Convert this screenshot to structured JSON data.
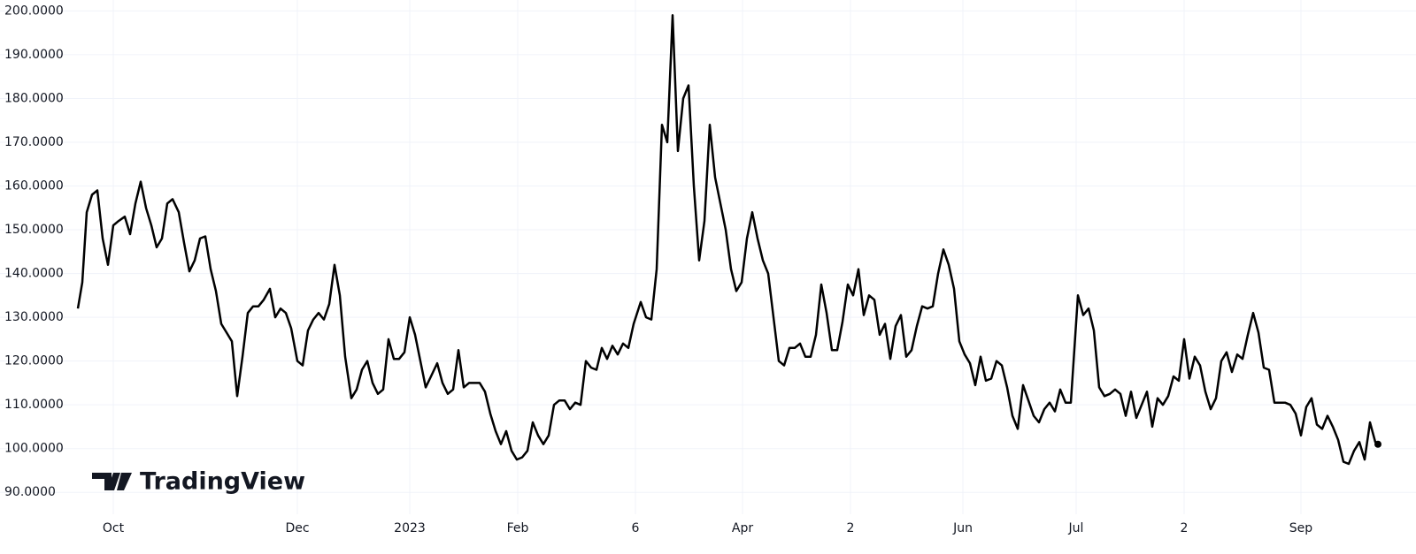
{
  "chart_data": {
    "type": "line",
    "watermark": "TradingView",
    "x": [
      0,
      5,
      10,
      16,
      22,
      28,
      34,
      40,
      46,
      53,
      59,
      65,
      71,
      77,
      83,
      89,
      95,
      101,
      107,
      114,
      120,
      126,
      132,
      138,
      144,
      150,
      156,
      162,
      168,
      174,
      180,
      186,
      192,
      198,
      204,
      210,
      217,
      223,
      229,
      235,
      241,
      248,
      254,
      260,
      266,
      272,
      278,
      284,
      290,
      296,
      302,
      309,
      315,
      321,
      327,
      333,
      339,
      345,
      351,
      357,
      363,
      369,
      375,
      381,
      387,
      393,
      399,
      406,
      412,
      418,
      424,
      430,
      436,
      442,
      448,
      454,
      460,
      466,
      472,
      478,
      484,
      490,
      496,
      502,
      508,
      514,
      520,
      526,
      532,
      538,
      544,
      550,
      556,
      562,
      568,
      574,
      580,
      586,
      592,
      598,
      604,
      610,
      616,
      622,
      628,
      636,
      642,
      648,
      654,
      660,
      666,
      672,
      678,
      684,
      690,
      696,
      702,
      708,
      714,
      720,
      726,
      732,
      738,
      744,
      750,
      756,
      762,
      768,
      774,
      780,
      786,
      792,
      798,
      804,
      810,
      816,
      822,
      828,
      834,
      840,
      846,
      852,
      858,
      864,
      870,
      876,
      882,
      888,
      894,
      900,
      906,
      912,
      918,
      924,
      930,
      936,
      942,
      948,
      954,
      960,
      966,
      972,
      978,
      984,
      990,
      996,
      1002,
      1008,
      1014,
      1020,
      1026,
      1032,
      1038,
      1044,
      1050,
      1056,
      1062,
      1068,
      1074,
      1080,
      1086,
      1092,
      1098,
      1104,
      1110,
      1116,
      1122,
      1130,
      1136,
      1142,
      1148,
      1154,
      1160,
      1166,
      1172,
      1178,
      1184,
      1190,
      1196,
      1202,
      1208,
      1214,
      1220,
      1226,
      1232,
      1238,
      1244,
      1250,
      1256,
      1262,
      1268,
      1274,
      1280,
      1286,
      1292,
      1298,
      1304,
      1310,
      1316,
      1322,
      1328,
      1334,
      1340,
      1346,
      1352,
      1358,
      1364,
      1370,
      1376,
      1382,
      1388,
      1394,
      1400,
      1406,
      1412,
      1418,
      1424,
      1430,
      1436,
      1442,
      1448,
      1454,
      1460,
      1466,
      1469
    ],
    "series": [
      {
        "color": "#000000",
        "values": [
          132,
          138,
          154,
          158,
          159,
          148,
          142,
          151,
          152,
          153,
          149,
          156,
          161,
          155,
          151,
          146,
          148,
          156,
          157,
          154,
          147,
          140.5,
          143,
          148,
          148.5,
          141,
          136,
          128.5,
          126.5,
          124.5,
          112,
          121,
          131,
          132.5,
          132.5,
          134,
          136.5,
          130,
          132,
          131,
          127.5,
          120,
          119,
          127,
          129.5,
          131,
          129.5,
          133,
          142,
          135,
          121,
          111.5,
          113.5,
          118,
          120,
          115,
          112.5,
          113.5,
          125,
          120.5,
          120.5,
          122,
          130,
          126,
          120,
          114,
          116.5,
          119.5,
          115,
          112.5,
          113.5,
          122.5,
          114,
          115,
          115,
          115,
          113,
          108,
          104,
          101,
          104,
          99.5,
          97.5,
          98,
          99.5,
          106,
          103,
          101,
          103,
          110,
          111,
          111,
          109,
          110.5,
          110,
          120,
          118.5,
          118,
          123,
          120.5,
          123.5,
          121.5,
          124,
          123,
          128.5,
          133.5,
          130,
          129.5,
          141,
          174,
          170,
          199,
          168,
          180,
          183,
          160,
          143,
          152,
          174,
          162,
          156,
          150,
          141,
          136,
          138,
          148,
          154,
          148,
          143,
          140,
          130,
          120,
          119,
          123,
          123,
          124,
          121,
          121,
          126,
          137.5,
          131,
          122.5,
          122.5,
          129,
          137.5,
          135,
          141,
          130.5,
          135,
          134,
          126,
          128.5,
          120.5,
          128,
          130.5,
          121,
          122.5,
          128,
          132.5,
          132,
          132.5,
          140,
          145.5,
          142,
          136.5,
          124.5,
          121.5,
          119.5,
          114.5,
          121,
          115.5,
          116,
          120,
          119,
          114,
          107.5,
          104.5,
          114.5,
          111,
          107.5,
          106,
          109,
          110.5,
          108.5,
          113.5,
          110.5,
          110.5,
          135,
          130.5,
          132,
          127,
          114,
          112,
          112.5,
          113.5,
          112.5,
          107.5,
          113,
          107,
          110,
          113,
          105,
          111.5,
          110,
          112,
          116.5,
          115.5,
          125,
          116,
          121,
          119,
          113,
          109,
          111.5,
          120,
          122,
          117.5,
          121.5,
          120.5,
          126,
          131,
          126.5,
          118.5,
          118,
          110.5,
          110.5,
          110.5,
          110,
          108,
          103,
          109.5,
          111.5,
          105.5,
          104.5,
          107.5,
          105,
          102,
          97,
          96.5,
          99.5,
          101.5,
          97.5,
          106,
          101.5,
          101
        ]
      }
    ],
    "xlim": [
      0,
      1472
    ],
    "xticks": [
      {
        "value": 40,
        "label": "Oct"
      },
      {
        "value": 248,
        "label": "Dec"
      },
      {
        "value": 375,
        "label": "2023"
      },
      {
        "value": 497,
        "label": "Feb"
      },
      {
        "value": 630,
        "label": "6"
      },
      {
        "value": 751,
        "label": "Apr"
      },
      {
        "value": 873,
        "label": "2"
      },
      {
        "value": 1000,
        "label": "Jun"
      },
      {
        "value": 1128,
        "label": "Jul"
      },
      {
        "value": 1250,
        "label": "2"
      },
      {
        "value": 1382,
        "label": "Sep"
      }
    ],
    "ylim": [
      85,
      202.5
    ],
    "yticks": [
      {
        "value": 90,
        "label": "90.0000"
      },
      {
        "value": 100,
        "label": "100.0000"
      },
      {
        "value": 110,
        "label": "110.0000"
      },
      {
        "value": 120,
        "label": "120.0000"
      },
      {
        "value": 130,
        "label": "130.0000"
      },
      {
        "value": 140,
        "label": "140.0000"
      },
      {
        "value": 150,
        "label": "150.0000"
      },
      {
        "value": 160,
        "label": "160.0000"
      },
      {
        "value": 170,
        "label": "170.0000"
      },
      {
        "value": 180,
        "label": "180.0000"
      },
      {
        "value": 190,
        "label": "190.0000"
      },
      {
        "value": 200,
        "label": "200.0000"
      }
    ],
    "grid": true
  }
}
